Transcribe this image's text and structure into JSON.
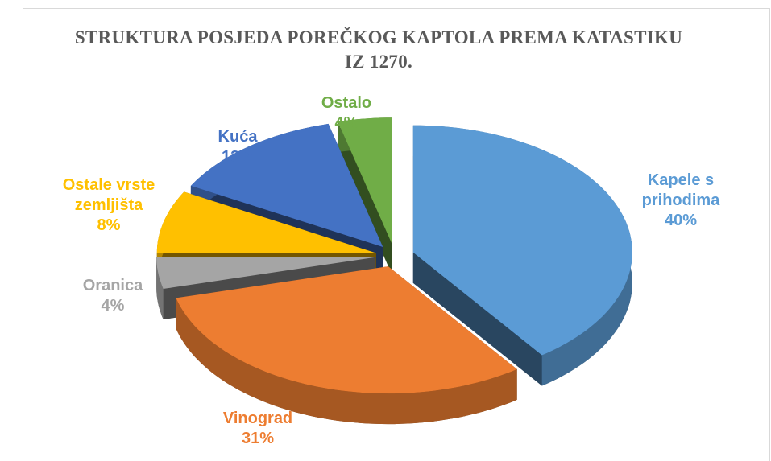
{
  "chart_data": {
    "type": "pie3d",
    "title": "STRUKTURA POSJEDA POREČKOG KAPTOLA PREMA KATASTIKU IZ 1270.",
    "categories": [
      "Kapele s prihodima",
      "Vinograd",
      "Oranica",
      "Ostale vrste zemljišta",
      "Kuća",
      "Ostalo"
    ],
    "values": [
      40,
      31,
      4,
      8,
      13,
      4
    ],
    "value_labels": [
      "40%",
      "31%",
      "4%",
      "8%",
      "13%",
      "4%"
    ],
    "colors": [
      "#5b9bd5",
      "#ed7d31",
      "#a5a5a5",
      "#ffc000",
      "#4472c4",
      "#70ad47"
    ]
  }
}
